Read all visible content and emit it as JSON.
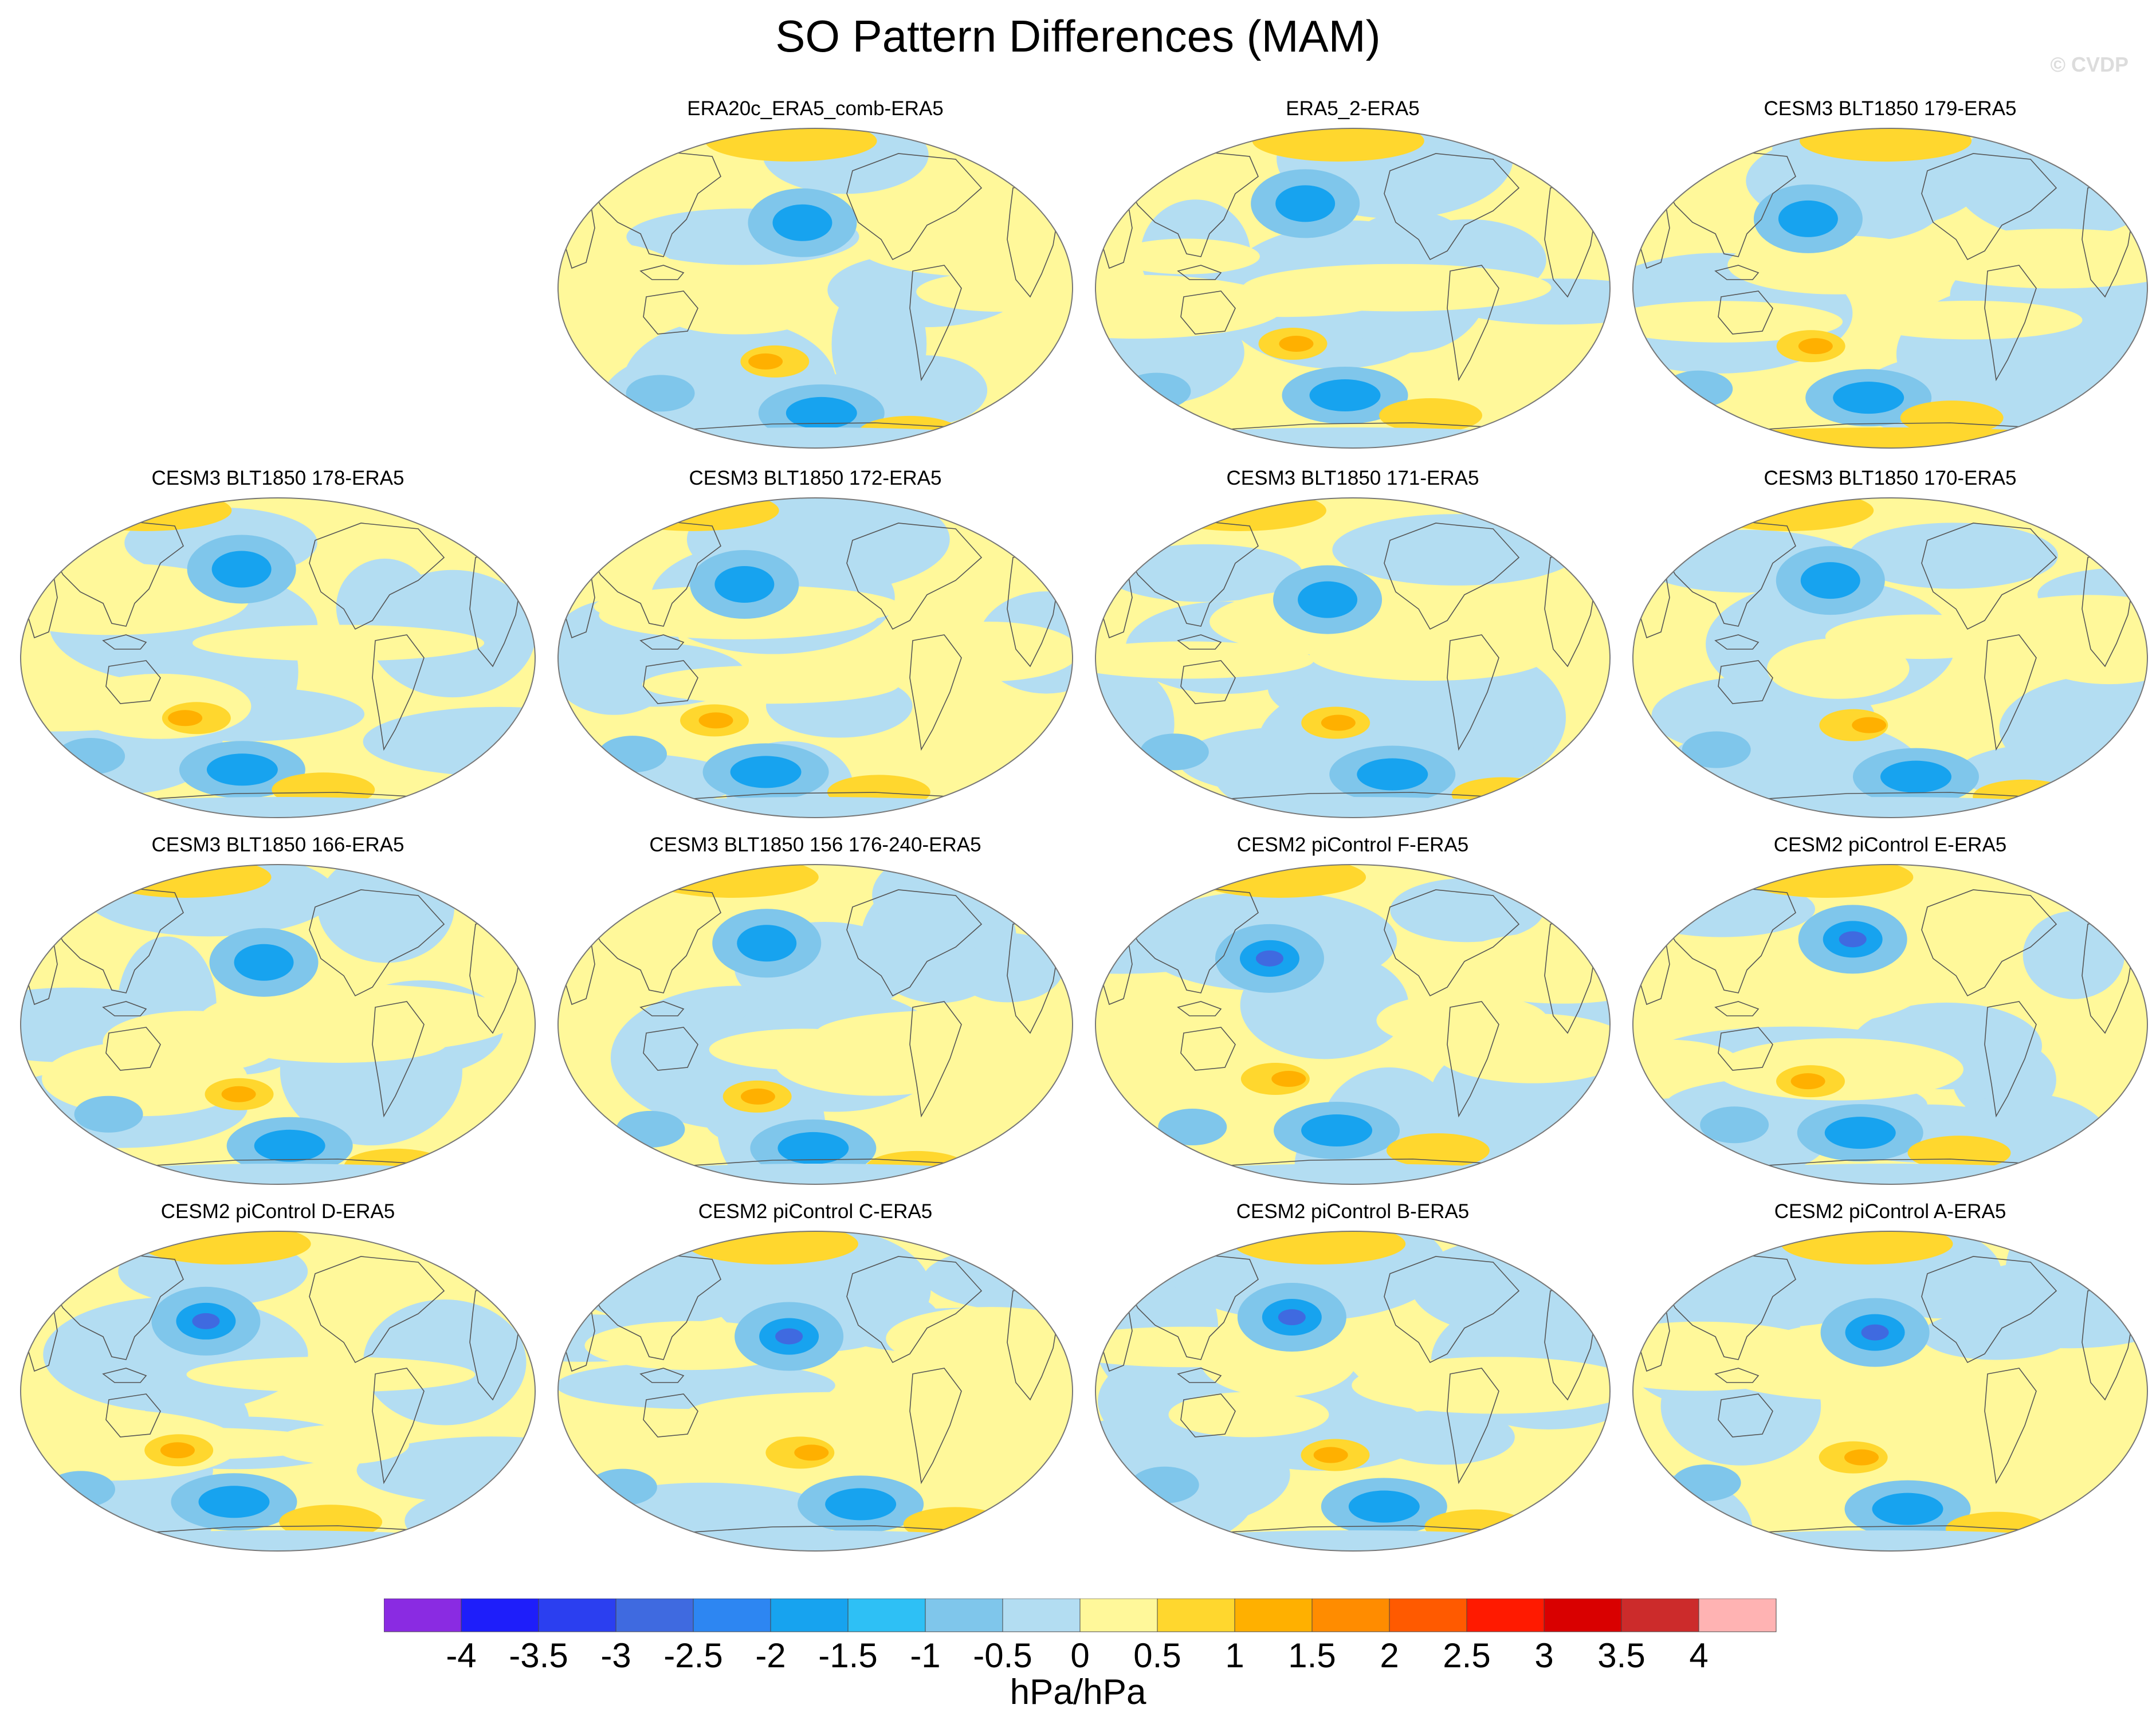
{
  "title": "SO Pattern Differences (MAM)",
  "watermark": "© CVDP",
  "chart_data": {
    "type": "contour-map-grid",
    "title": "SO Pattern Differences (MAM)",
    "projection": "Robinson (Pacific-centered)",
    "variable": "SO pattern difference",
    "panels": [
      {
        "label": "ERA20c_ERA5_comb-ERA5",
        "row": 0,
        "col": 1
      },
      {
        "label": "ERA5_2-ERA5",
        "row": 0,
        "col": 2
      },
      {
        "label": "CESM3 BLT1850 179-ERA5",
        "row": 0,
        "col": 3
      },
      {
        "label": "CESM3 BLT1850 178-ERA5",
        "row": 1,
        "col": 0
      },
      {
        "label": "CESM3 BLT1850 172-ERA5",
        "row": 1,
        "col": 1
      },
      {
        "label": "CESM3 BLT1850 171-ERA5",
        "row": 1,
        "col": 2
      },
      {
        "label": "CESM3 BLT1850 170-ERA5",
        "row": 1,
        "col": 3
      },
      {
        "label": "CESM3 BLT1850 166-ERA5",
        "row": 2,
        "col": 0
      },
      {
        "label": "CESM3 BLT1850 156 176-240-ERA5",
        "row": 2,
        "col": 1
      },
      {
        "label": "CESM2 piControl F-ERA5",
        "row": 2,
        "col": 2
      },
      {
        "label": "CESM2 piControl E-ERA5",
        "row": 2,
        "col": 3
      },
      {
        "label": "CESM2 piControl D-ERA5",
        "row": 3,
        "col": 0
      },
      {
        "label": "CESM2 piControl C-ERA5",
        "row": 3,
        "col": 1
      },
      {
        "label": "CESM2 piControl B-ERA5",
        "row": 3,
        "col": 2
      },
      {
        "label": "CESM2 piControl A-ERA5",
        "row": 3,
        "col": 3
      }
    ],
    "colorbar": {
      "units": "hPa/hPa",
      "tick_labels": [
        "-4",
        "-3.5",
        "-3",
        "-2.5",
        "-2",
        "-1.5",
        "-1",
        "-0.5",
        "0",
        "0.5",
        "1",
        "1.5",
        "2",
        "2.5",
        "3",
        "3.5",
        "4"
      ],
      "colors": [
        "#8a2be2",
        "#1e1efa",
        "#2b3ff0",
        "#3f6ae0",
        "#2d86f2",
        "#17a3ef",
        "#2ec0f5",
        "#7fc6eb",
        "#b3ddf2",
        "#fff89a",
        "#ffd72e",
        "#ffb000",
        "#ff8c00",
        "#ff5a00",
        "#ff1a00",
        "#d90000",
        "#cc2b2b",
        "#ffb3b3"
      ]
    }
  }
}
